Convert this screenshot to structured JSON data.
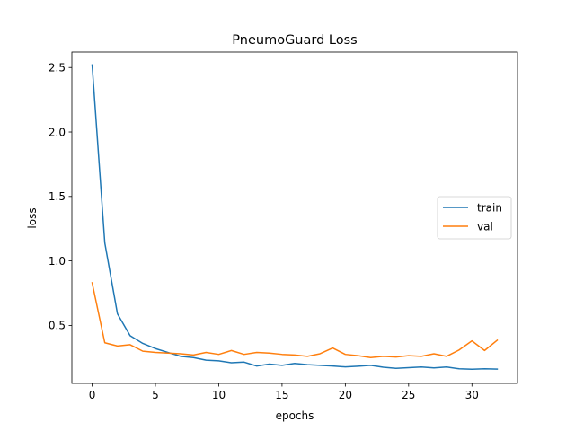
{
  "chart_data": {
    "type": "line",
    "title": "PneumoGuard Loss",
    "xlabel": "epochs",
    "ylabel": "loss",
    "xlim": [
      -1.6,
      33.6
    ],
    "ylim": [
      0.05,
      2.62
    ],
    "xticks": [
      0,
      5,
      10,
      15,
      20,
      25,
      30
    ],
    "yticks": [
      0.5,
      1.0,
      1.5,
      2.0,
      2.5
    ],
    "xtick_labels": [
      "0",
      "5",
      "10",
      "15",
      "20",
      "25",
      "30"
    ],
    "ytick_labels": [
      "0.5",
      "1.0",
      "1.5",
      "2.0",
      "2.5"
    ],
    "grid": false,
    "legend_position": "center-right",
    "x": [
      0,
      1,
      2,
      3,
      4,
      5,
      6,
      7,
      8,
      9,
      10,
      11,
      12,
      13,
      14,
      15,
      16,
      17,
      18,
      19,
      20,
      21,
      22,
      23,
      24,
      25,
      26,
      27,
      28,
      29,
      30,
      31,
      32
    ],
    "series": [
      {
        "name": "train",
        "color": "#1f77b4",
        "values": [
          2.52,
          1.14,
          0.59,
          0.42,
          0.36,
          0.32,
          0.29,
          0.26,
          0.25,
          0.23,
          0.225,
          0.21,
          0.215,
          0.185,
          0.2,
          0.19,
          0.205,
          0.195,
          0.19,
          0.185,
          0.178,
          0.183,
          0.19,
          0.175,
          0.167,
          0.172,
          0.177,
          0.17,
          0.177,
          0.163,
          0.16,
          0.163,
          0.161
        ]
      },
      {
        "name": "val",
        "color": "#ff7f0e",
        "values": [
          0.83,
          0.365,
          0.34,
          0.35,
          0.3,
          0.29,
          0.285,
          0.28,
          0.27,
          0.29,
          0.275,
          0.305,
          0.275,
          0.29,
          0.285,
          0.275,
          0.27,
          0.26,
          0.28,
          0.325,
          0.275,
          0.265,
          0.25,
          0.26,
          0.255,
          0.265,
          0.26,
          0.28,
          0.26,
          0.31,
          0.38,
          0.305,
          0.385
        ]
      }
    ]
  }
}
